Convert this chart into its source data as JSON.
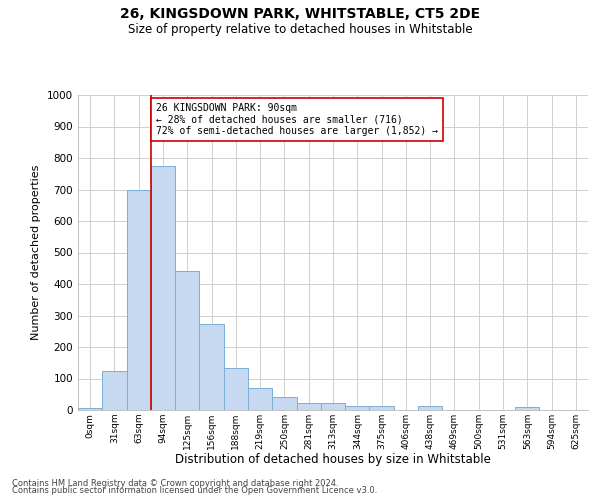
{
  "title": "26, KINGSDOWN PARK, WHITSTABLE, CT5 2DE",
  "subtitle": "Size of property relative to detached houses in Whitstable",
  "xlabel": "Distribution of detached houses by size in Whitstable",
  "ylabel": "Number of detached properties",
  "bar_color": "#c6d9f0",
  "bar_edge_color": "#7aafd4",
  "categories": [
    "0sqm",
    "31sqm",
    "63sqm",
    "94sqm",
    "125sqm",
    "156sqm",
    "188sqm",
    "219sqm",
    "250sqm",
    "281sqm",
    "313sqm",
    "344sqm",
    "375sqm",
    "406sqm",
    "438sqm",
    "469sqm",
    "500sqm",
    "531sqm",
    "563sqm",
    "594sqm",
    "625sqm"
  ],
  "values": [
    7,
    125,
    700,
    775,
    440,
    272,
    132,
    70,
    40,
    22,
    22,
    12,
    12,
    0,
    12,
    0,
    0,
    0,
    8,
    0,
    0
  ],
  "ylim": [
    0,
    1000
  ],
  "yticks": [
    0,
    100,
    200,
    300,
    400,
    500,
    600,
    700,
    800,
    900,
    1000
  ],
  "vline_x": 3,
  "vline_color": "#cc0000",
  "annotation_text": "26 KINGSDOWN PARK: 90sqm\n← 28% of detached houses are smaller (716)\n72% of semi-detached houses are larger (1,852) →",
  "annotation_box_color": "#ffffff",
  "annotation_box_edge": "#cc0000",
  "footer_line1": "Contains HM Land Registry data © Crown copyright and database right 2024.",
  "footer_line2": "Contains public sector information licensed under the Open Government Licence v3.0.",
  "background_color": "#ffffff",
  "grid_color": "#d0d0d0"
}
